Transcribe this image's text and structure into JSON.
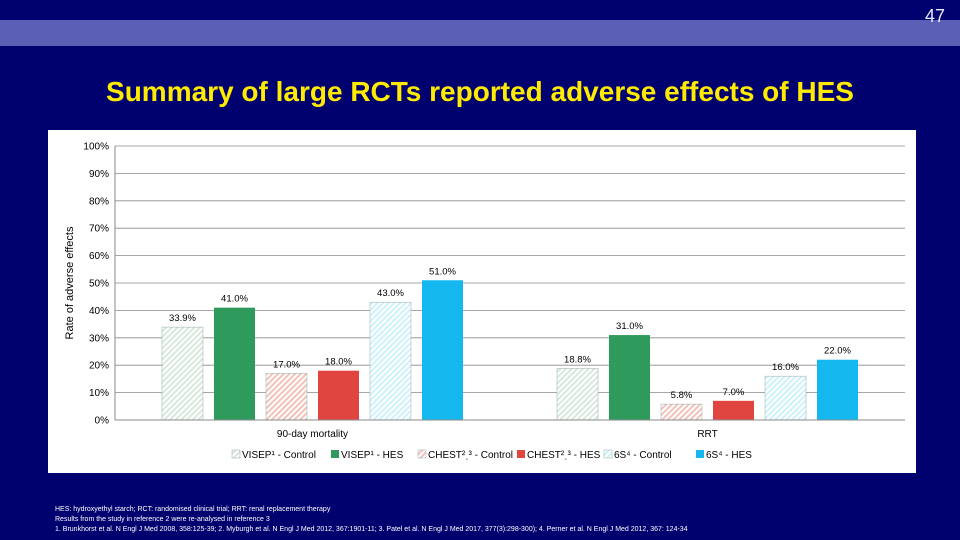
{
  "slide": {
    "page_number": "47",
    "title": "Summary of large RCTs reported adverse effects of HES"
  },
  "chart_data": {
    "type": "bar",
    "categories": [
      "90-day mortality",
      "RRT"
    ],
    "series": [
      {
        "name": "VISEP¹ - Control",
        "values": [
          33.9,
          18.8
        ],
        "labels": [
          "33.9%",
          "18.8%"
        ],
        "color": "#d8e8dc",
        "pattern": "hatch"
      },
      {
        "name": "VISEP¹ - HES",
        "values": [
          41.0,
          31.0
        ],
        "labels": [
          "41.0%",
          "31.0%"
        ],
        "color": "#2e9a5c",
        "pattern": "solid"
      },
      {
        "name": "CHEST²ˌ³ - Control",
        "values": [
          17.0,
          5.8
        ],
        "labels": [
          "17.0%",
          "5.8%"
        ],
        "color": "#f2c2ba",
        "pattern": "hatch"
      },
      {
        "name": "CHEST²ˌ³ - HES",
        "values": [
          18.0,
          7.0
        ],
        "labels": [
          "18.0%",
          "7.0%"
        ],
        "color": "#e0453f",
        "pattern": "solid"
      },
      {
        "name": "6S⁴ - Control",
        "values": [
          43.0,
          16.0
        ],
        "labels": [
          "43.0%",
          "16.0%"
        ],
        "color": "#cdf2fb",
        "pattern": "hatch"
      },
      {
        "name": "6S⁴ - HES",
        "values": [
          51.0,
          22.0
        ],
        "labels": [
          "51.0%",
          "22.0%"
        ],
        "color": "#14b8ee",
        "pattern": "solid"
      }
    ],
    "ylabel": "Rate of adverse effects",
    "ylim": [
      0,
      100
    ],
    "yticks": [
      "0%",
      "10%",
      "20%",
      "30%",
      "40%",
      "50%",
      "60%",
      "70%",
      "80%",
      "90%",
      "100%"
    ],
    "grid": true,
    "legend": "bottom",
    "background": "#ffffff"
  },
  "footnotes": {
    "line1": "HES: hydroxyethyl starch; RCT: randomised clinical trial; RRT: renal replacement therapy",
    "line2": "Results from the study in reference 2 were re-analysed in reference 3",
    "line3": "1. Brunkhorst et al. N Engl J Med 2008, 358:125-39; 2. Myburgh et al. N Engl J Med 2012, 367:1901-11; 3. Patel et al. N Engl J Med 2017, 377(3):298-300); 4. Perner et al. N Engl J Med 2012, 367: 124-34"
  }
}
